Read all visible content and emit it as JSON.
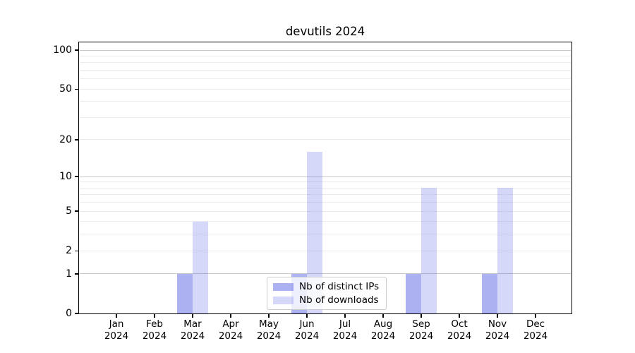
{
  "title": "devutils 2024",
  "chart_data": {
    "type": "bar",
    "title": "devutils 2024",
    "categories": [
      "Jan",
      "Feb",
      "Mar",
      "Apr",
      "May",
      "Jun",
      "Jul",
      "Aug",
      "Sep",
      "Oct",
      "Nov",
      "Dec"
    ],
    "category_year": "2024",
    "series": [
      {
        "name": "Nb of distinct IPs",
        "color": "rgba(90,100,230,0.5)",
        "values": [
          0,
          0,
          1,
          0,
          0,
          1,
          0,
          0,
          1,
          0,
          1,
          0
        ]
      },
      {
        "name": "Nb of downloads",
        "color": "rgba(90,100,230,0.25)",
        "values": [
          0,
          0,
          4,
          0,
          0,
          16,
          0,
          0,
          8,
          0,
          8,
          0
        ]
      }
    ],
    "yscale": "log1p",
    "yticks": [
      0,
      1,
      2,
      5,
      10,
      20,
      50,
      100
    ],
    "minor_gridlines": [
      2,
      3,
      4,
      5,
      6,
      7,
      8,
      9,
      20,
      30,
      40,
      50,
      60,
      70,
      80,
      90
    ],
    "major_gridlines": [
      1,
      10,
      100
    ],
    "ylim": [
      0,
      115
    ],
    "xlabel": "",
    "ylabel": "",
    "grid": true,
    "legend_position": "lower center"
  },
  "colors": {
    "major_grid": "#c8c8c8",
    "minor_grid": "#ececec",
    "spine": "#000000",
    "background": "#ffffff"
  }
}
